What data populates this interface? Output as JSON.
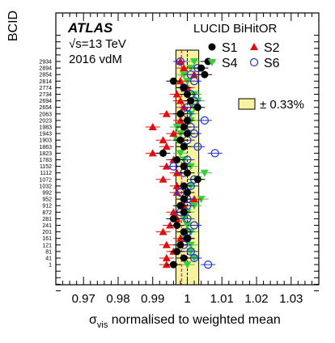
{
  "chart_data": {
    "type": "scatter",
    "title": "",
    "experiment": "ATLAS",
    "energy_label": "√s=13 TeV",
    "dataset_label": "2016 vdM",
    "algorithm_label": "LUCID BiHitOR",
    "xlabel_main": "σ",
    "xlabel_sub": "vis",
    "xlabel_rest": " normalised to weighted mean",
    "ylabel": "BCID",
    "xlim": [
      0.962,
      1.038
    ],
    "x_ticks": [
      0.97,
      0.98,
      0.99,
      1,
      1.01,
      1.02,
      1.03
    ],
    "x_tick_labels": [
      "0.97",
      "0.98",
      "0.99",
      "1",
      "1.01",
      "1.02",
      "1.03"
    ],
    "band": {
      "label": "± 0.33%",
      "low": 0.9967,
      "high": 1.0033,
      "color": "#f7f3a0"
    },
    "bcids": [
      "2934",
      "2894",
      "2854",
      "2814",
      "2774",
      "2734",
      "2694",
      "2654",
      "2063",
      "2023",
      "1983",
      "1943",
      "1903",
      "1863",
      "1823",
      "1783",
      "1152",
      "1112",
      "1072",
      "1032",
      "992",
      "952",
      "912",
      "872",
      "281",
      "241",
      "201",
      "161",
      "121",
      "81",
      "41",
      "1"
    ],
    "legend": [
      {
        "name": "S1",
        "marker": "circle-filled",
        "color": "#000000"
      },
      {
        "name": "S2",
        "marker": "triangle-up",
        "color": "#e01010"
      },
      {
        "name": "S4",
        "marker": "triangle-down",
        "color": "#3ccc3c"
      },
      {
        "name": "S6",
        "marker": "circle-open",
        "color": "#2030e0"
      }
    ],
    "series": [
      {
        "name": "S1",
        "values": [
          1.006,
          1.004,
          1.005,
          0.996,
          0.999,
          1.0,
          1.001,
          1.003,
          0.998,
          1.0,
          0.999,
          1.0,
          0.998,
          0.999,
          0.993,
          0.997,
          0.999,
          1.0,
          1.003,
          0.999,
          1.0,
          0.999,
          0.998,
          0.999,
          0.996,
          0.997,
          0.999,
          1.0,
          0.998,
          0.997,
          0.999,
          0.996
        ]
      },
      {
        "name": "S2",
        "values": [
          0.998,
          0.999,
          1.002,
          0.998,
          1.0,
          0.997,
          0.998,
          0.999,
          0.994,
          0.998,
          0.99,
          0.996,
          0.993,
          0.994,
          0.99,
          0.996,
          0.994,
          0.997,
          0.993,
          0.997,
          0.997,
          1.002,
          0.999,
          0.996,
          0.997,
          0.995,
          0.993,
          0.998,
          0.994,
          0.996,
          0.994,
          0.994
        ]
      },
      {
        "name": "S4",
        "values": [
          1.002,
          1.001,
          0.999,
          1.0,
          0.999,
          1.002,
          1.003,
          1.002,
          1.001,
          1.001,
          0.997,
          0.998,
          0.997,
          0.999,
          0.998,
          0.999,
          1.001,
          1.005,
          1.003,
          1.001,
          1.0,
          1.004,
          1.002,
          1.0,
          0.999,
          1.0,
          1.001,
          0.999,
          1.001,
          1.001,
          1.002,
          1.0
        ]
      },
      {
        "name": "S6",
        "values": [
          0.998,
          1.003,
          1.001,
          1.002,
          0.999,
          1.001,
          1.002,
          1.0,
          1.0,
          1.005,
          1.001,
          1.002,
          1.0,
          1.003,
          1.008,
          1.0,
          0.996,
          0.999,
          1.002,
          1.001,
          0.998,
          1.0,
          1.0,
          0.998,
          1.0,
          1.002,
          1.0,
          1.0,
          0.999,
          1.001,
          1.002,
          1.006
        ]
      }
    ]
  }
}
